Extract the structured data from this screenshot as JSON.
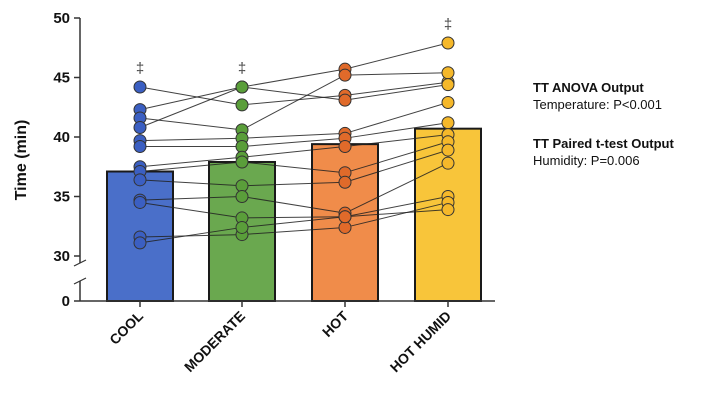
{
  "chart_data": {
    "type": "bar",
    "ylabel": "Time (min)",
    "xlabel": "",
    "yticks": [
      "0",
      "30",
      "35",
      "40",
      "45",
      "50"
    ],
    "ylim": [
      30,
      50
    ],
    "axis_break": "between 0 and 30",
    "categories": [
      "COOL",
      "MODERATE",
      "HOT",
      "HOT HUMID"
    ],
    "means": [
      37.1,
      37.9,
      39.4,
      40.7
    ],
    "colors": [
      "#4a6fc9",
      "#6aa84f",
      "#f08c4a",
      "#f8c53a"
    ],
    "point_colors": [
      "#3b5fc2",
      "#5a9e3a",
      "#e06a2a",
      "#f5b82a"
    ],
    "significance_markers": [
      "‡",
      "‡",
      "",
      "‡"
    ],
    "individual_points": [
      [
        44.2,
        42.3,
        41.6,
        40.8,
        39.7,
        39.2,
        37.5,
        37.1,
        36.4,
        34.7,
        34.5,
        31.6,
        31.1
      ],
      [
        42.7,
        44.2,
        40.6,
        44.2,
        39.9,
        39.2,
        38.3,
        37.9,
        35.9,
        35.0,
        33.2,
        31.8,
        32.4
      ],
      [
        43.5,
        45.7,
        45.2,
        43.1,
        40.3,
        39.9,
        39.2,
        37.0,
        36.2,
        33.6,
        33.3,
        32.4,
        33.3
      ],
      [
        44.6,
        47.9,
        45.4,
        44.4,
        42.9,
        41.2,
        40.2,
        39.6,
        38.9,
        37.8,
        35.0,
        34.5,
        33.9
      ]
    ]
  },
  "annotations": [
    {
      "title": "TT ANOVA Output",
      "text": "Temperature: P<0.001"
    },
    {
      "title": "TT Paired t-test Output",
      "text": "Humidity: P=0.006"
    }
  ]
}
